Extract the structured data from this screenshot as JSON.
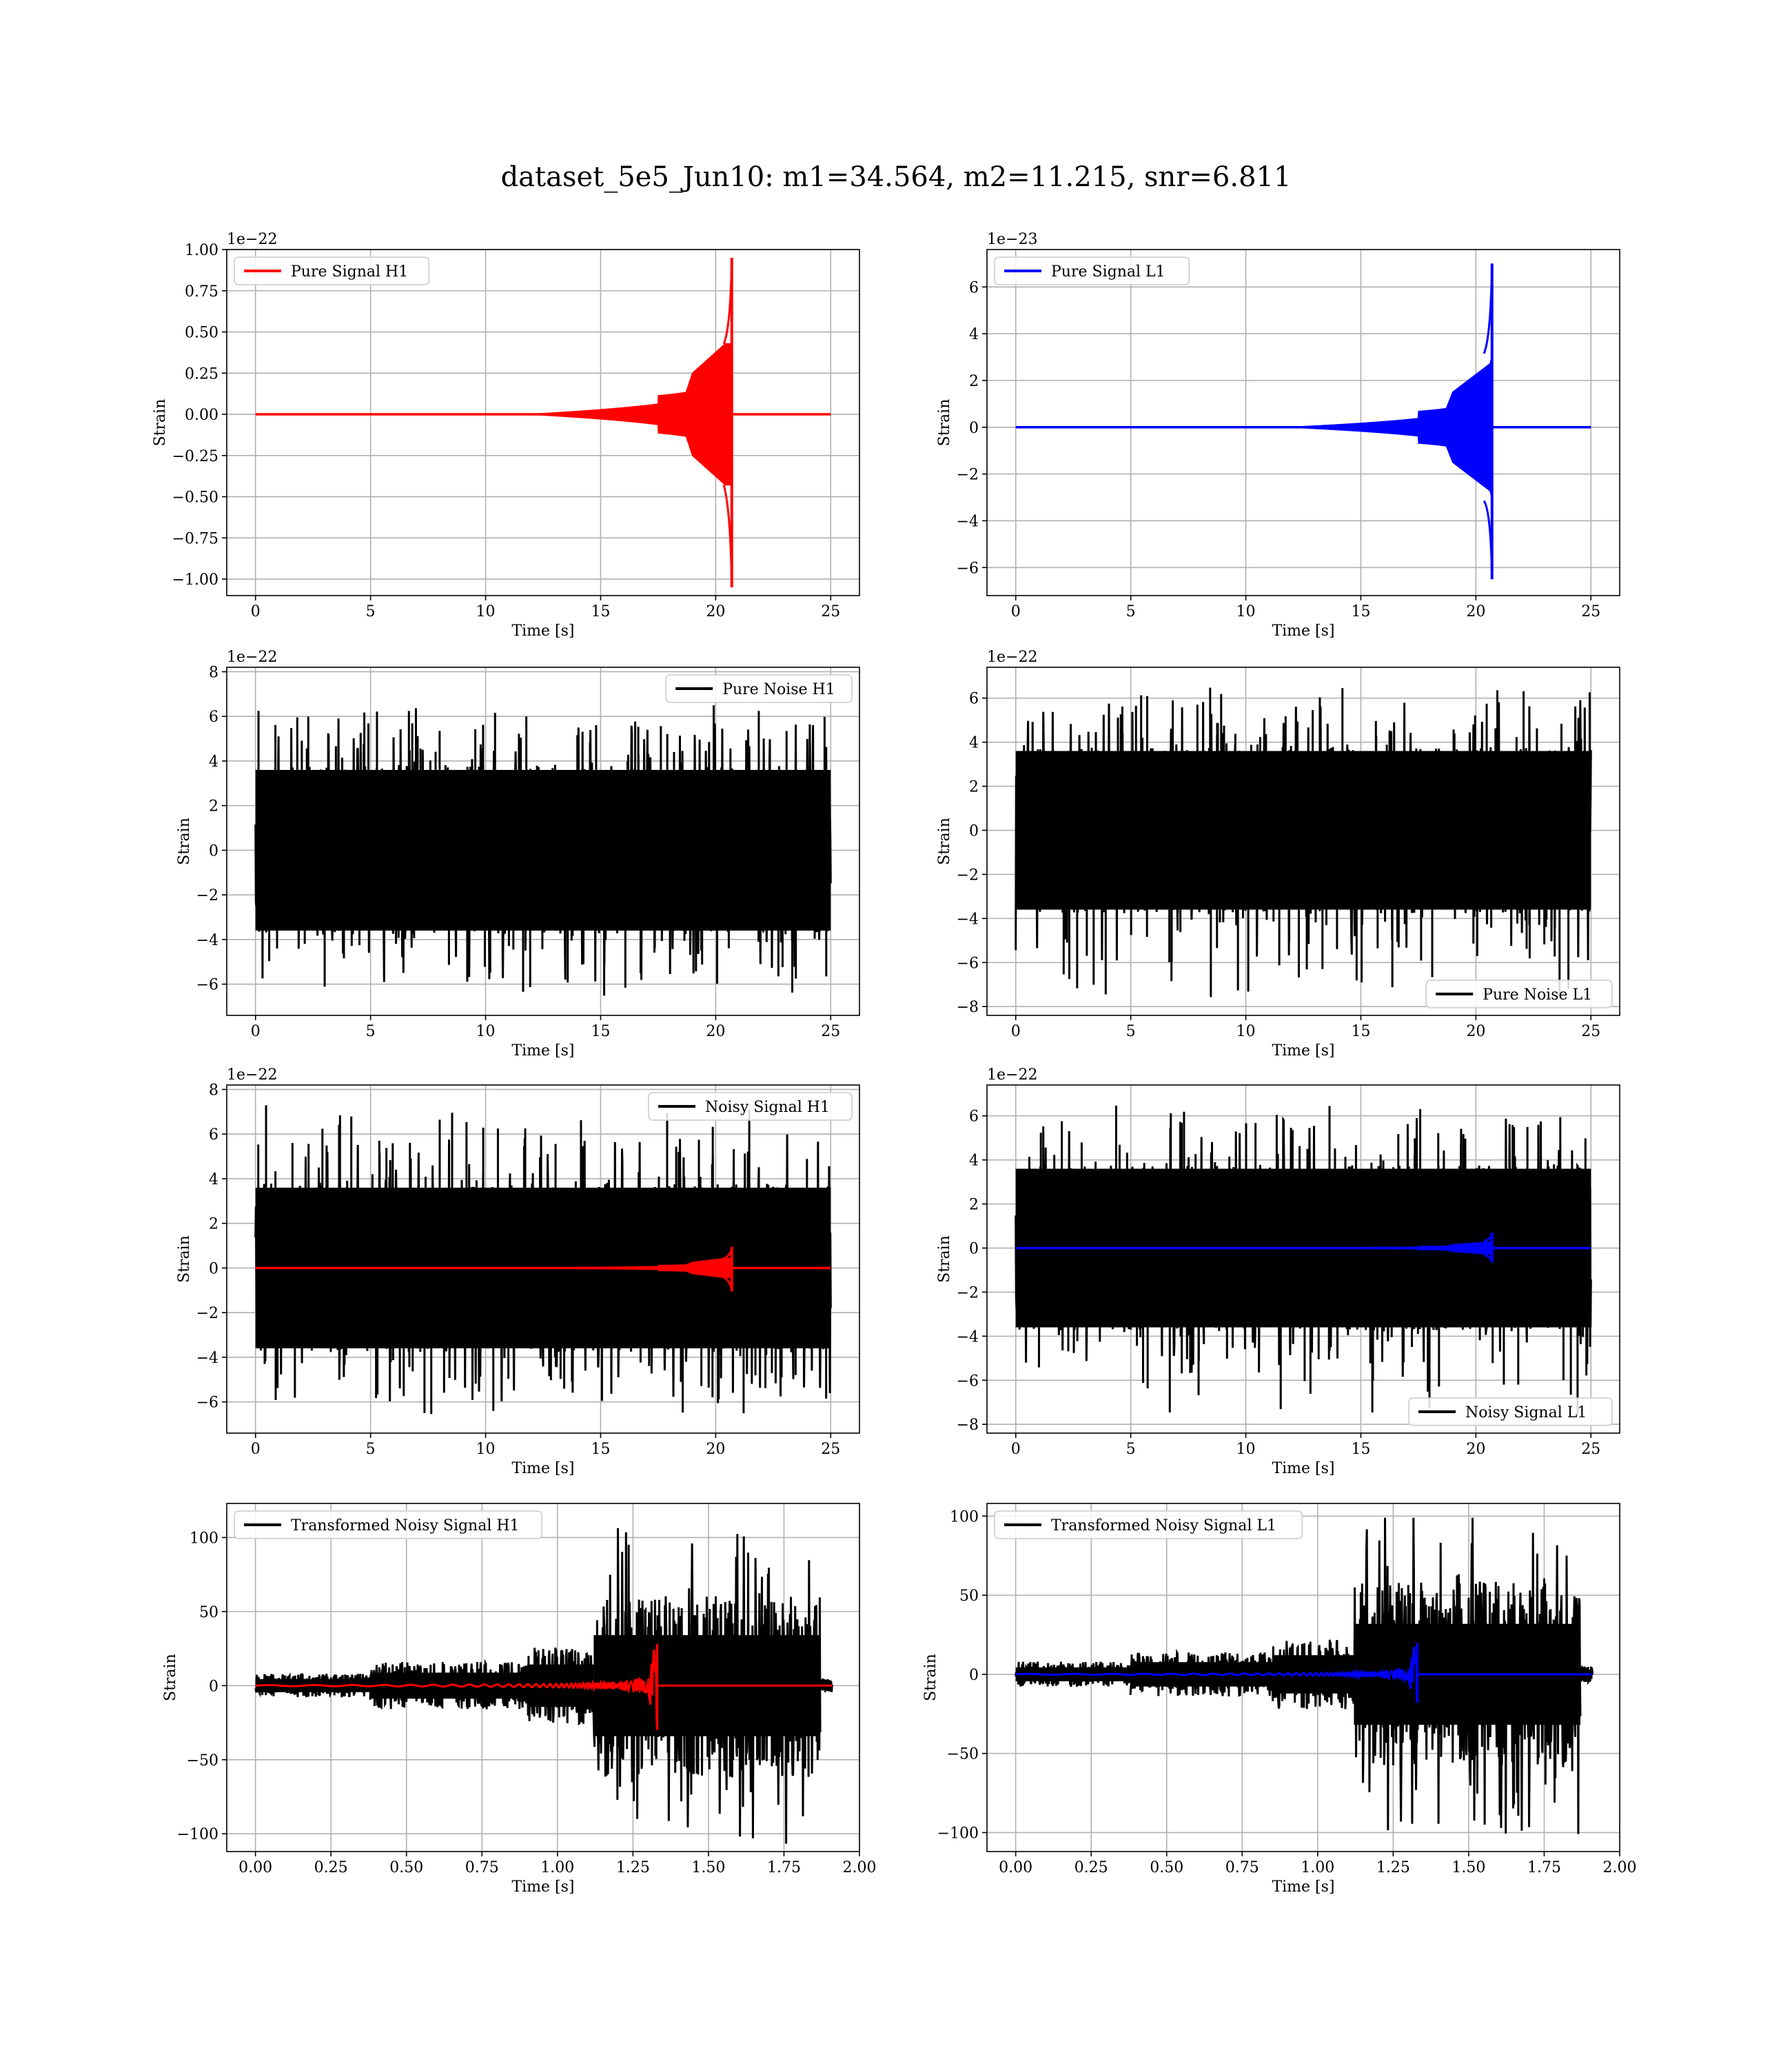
{
  "figure": {
    "suptitle": "dataset_5e5_Jun10: m1=34.564, m2=11.215, snr=6.811"
  },
  "chart_data": [
    {
      "type": "line",
      "legend": "Pure Signal H1",
      "legend_position": "upper left",
      "color": "#ff0000",
      "xlabel": "Time [s]",
      "ylabel": "Strain",
      "offset_text": "1e−22",
      "xlim": [
        -1.25,
        26.25
      ],
      "ylim": [
        -1.1,
        1.0
      ],
      "xticks": [
        0,
        5,
        10,
        15,
        20,
        25
      ],
      "xtick_labels": [
        "0",
        "5",
        "10",
        "15",
        "20",
        "25"
      ],
      "yticks": [
        1.0,
        0.75,
        0.5,
        0.25,
        0.0,
        -0.25,
        -0.5,
        -0.75,
        -1.0
      ],
      "ytick_labels": [
        "1.00",
        "0.75",
        "0.50",
        "0.25",
        "0.00",
        "−0.25",
        "−0.50",
        "−0.75",
        "−1.00"
      ],
      "grid": true,
      "waveform": {
        "t_start": 0,
        "t_merger": 20.7,
        "t_end": 25,
        "peak_pos": 0.95,
        "peak_neg": -1.05,
        "early_envelope": 0.25
      }
    },
    {
      "type": "line",
      "legend": "Pure Signal L1",
      "legend_position": "upper left",
      "color": "#0000ff",
      "xlabel": "Time [s]",
      "ylabel": "Strain",
      "offset_text": "1e−23",
      "xlim": [
        -1.25,
        26.25
      ],
      "ylim": [
        -7.2,
        7.6
      ],
      "xticks": [
        0,
        5,
        10,
        15,
        20,
        25
      ],
      "xtick_labels": [
        "0",
        "5",
        "10",
        "15",
        "20",
        "25"
      ],
      "yticks": [
        6,
        4,
        2,
        0,
        -2,
        -4,
        -6
      ],
      "ytick_labels": [
        "6",
        "4",
        "2",
        "0",
        "−2",
        "−4",
        "−6"
      ],
      "grid": true,
      "waveform": {
        "t_start": 0,
        "t_merger": 20.7,
        "t_end": 25,
        "peak_pos": 7.0,
        "peak_neg": -6.5,
        "early_envelope": 1.5
      }
    },
    {
      "type": "line",
      "legend": "Pure Noise H1",
      "legend_position": "upper right",
      "color": "#000000",
      "xlabel": "Time [s]",
      "ylabel": "Strain",
      "offset_text": "1e−22",
      "xlim": [
        -1.25,
        26.25
      ],
      "ylim": [
        -7.4,
        8.2
      ],
      "xticks": [
        0,
        5,
        10,
        15,
        20,
        25
      ],
      "xtick_labels": [
        "0",
        "5",
        "10",
        "15",
        "20",
        "25"
      ],
      "yticks": [
        8,
        6,
        4,
        2,
        0,
        -2,
        -4,
        -6
      ],
      "ytick_labels": [
        "8",
        "6",
        "4",
        "2",
        "0",
        "−2",
        "−4",
        "−6"
      ],
      "grid": true,
      "noise": {
        "t_start": 0,
        "t_end": 25,
        "band": 3.6,
        "max": 6.5,
        "min": -6.6
      }
    },
    {
      "type": "line",
      "legend": "Pure Noise L1",
      "legend_position": "lower right",
      "color": "#000000",
      "xlabel": "Time [s]",
      "ylabel": "Strain",
      "offset_text": "1e−22",
      "xlim": [
        -1.25,
        26.25
      ],
      "ylim": [
        -8.4,
        7.4
      ],
      "xticks": [
        0,
        5,
        10,
        15,
        20,
        25
      ],
      "xtick_labels": [
        "0",
        "5",
        "10",
        "15",
        "20",
        "25"
      ],
      "yticks": [
        6,
        4,
        2,
        0,
        -2,
        -4,
        -6,
        -8
      ],
      "ytick_labels": [
        "6",
        "4",
        "2",
        "0",
        "−2",
        "−4",
        "−6",
        "−8"
      ],
      "grid": true,
      "noise": {
        "t_start": 0,
        "t_end": 25,
        "band": 3.6,
        "max": 6.5,
        "min": -7.6
      }
    },
    {
      "type": "line",
      "legend": "Noisy Signal H1",
      "legend_position": "upper right",
      "color": "#000000",
      "overlay_color": "#ff0000",
      "xlabel": "Time [s]",
      "ylabel": "Strain",
      "offset_text": "1e−22",
      "xlim": [
        -1.25,
        26.25
      ],
      "ylim": [
        -7.4,
        8.2
      ],
      "xticks": [
        0,
        5,
        10,
        15,
        20,
        25
      ],
      "xtick_labels": [
        "0",
        "5",
        "10",
        "15",
        "20",
        "25"
      ],
      "yticks": [
        8,
        6,
        4,
        2,
        0,
        -2,
        -4,
        -6
      ],
      "ytick_labels": [
        "8",
        "6",
        "4",
        "2",
        "0",
        "−2",
        "−4",
        "−6"
      ],
      "grid": true,
      "noise": {
        "t_start": 0,
        "t_end": 25,
        "band": 3.6,
        "max": 7.3,
        "min": -6.6
      },
      "waveform": {
        "t_start": 0,
        "t_merger": 20.7,
        "t_end": 25,
        "peak_pos": 0.95,
        "peak_neg": -1.05,
        "early_envelope": 0.25
      }
    },
    {
      "type": "line",
      "legend": "Noisy Signal L1",
      "legend_position": "lower right",
      "color": "#000000",
      "overlay_color": "#0000ff",
      "xlabel": "Time [s]",
      "ylabel": "Strain",
      "offset_text": "1e−22",
      "xlim": [
        -1.25,
        26.25
      ],
      "ylim": [
        -8.4,
        7.4
      ],
      "xticks": [
        0,
        5,
        10,
        15,
        20,
        25
      ],
      "xtick_labels": [
        "0",
        "5",
        "10",
        "15",
        "20",
        "25"
      ],
      "yticks": [
        6,
        4,
        2,
        0,
        -2,
        -4,
        -6,
        -8
      ],
      "ytick_labels": [
        "6",
        "4",
        "2",
        "0",
        "−2",
        "−4",
        "−6",
        "−8"
      ],
      "grid": true,
      "noise": {
        "t_start": 0,
        "t_end": 25,
        "band": 3.6,
        "max": 6.5,
        "min": -7.6
      },
      "waveform": {
        "t_start": 0,
        "t_merger": 20.7,
        "t_end": 25,
        "peak_pos": 0.7,
        "peak_neg": -0.65,
        "early_envelope": 0.15
      }
    },
    {
      "type": "line",
      "legend": "Transformed Noisy Signal H1",
      "legend_position": "upper left",
      "color": "#000000",
      "overlay_color": "#ff0000",
      "xlabel": "Time [s]",
      "ylabel": "Strain",
      "offset_text": "",
      "xlim": [
        -0.095,
        2.0
      ],
      "ylim": [
        -112,
        123
      ],
      "xticks": [
        0.0,
        0.25,
        0.5,
        0.75,
        1.0,
        1.25,
        1.5,
        1.75,
        2.0
      ],
      "xtick_labels": [
        "0.00",
        "0.25",
        "0.50",
        "0.75",
        "1.00",
        "1.25",
        "1.50",
        "1.75",
        "2.00"
      ],
      "yticks": [
        100,
        50,
        0,
        -50,
        -100
      ],
      "ytick_labels": [
        "100",
        "50",
        "0",
        "−50",
        "−100"
      ],
      "grid": true,
      "transformed": {
        "t_end": 1.91,
        "segments": [
          {
            "t0": 0.0,
            "t1": 0.38,
            "amp": 8
          },
          {
            "t0": 0.38,
            "t1": 0.9,
            "amp": 16
          },
          {
            "t0": 0.9,
            "t1": 1.12,
            "amp": 26
          },
          {
            "t0": 1.12,
            "t1": 1.87,
            "amp": 62
          },
          {
            "t0": 1.87,
            "t1": 1.91,
            "amp": 5
          }
        ],
        "max": 113,
        "min": -110,
        "overlay": {
          "t_start": 0.0,
          "t_merger": 1.33,
          "t_end": 1.91,
          "peak_pos": 28,
          "peak_neg": -30
        }
      }
    },
    {
      "type": "line",
      "legend": "Transformed Noisy Signal L1",
      "legend_position": "upper left",
      "color": "#000000",
      "overlay_color": "#0000ff",
      "xlabel": "Time [s]",
      "ylabel": "Strain",
      "offset_text": "",
      "xlim": [
        -0.095,
        2.0
      ],
      "ylim": [
        -112,
        108
      ],
      "xticks": [
        0.0,
        0.25,
        0.5,
        0.75,
        1.0,
        1.25,
        1.5,
        1.75,
        2.0
      ],
      "xtick_labels": [
        "0.00",
        "0.25",
        "0.50",
        "0.75",
        "1.00",
        "1.25",
        "1.50",
        "1.75",
        "2.00"
      ],
      "yticks": [
        100,
        50,
        0,
        -50,
        -100
      ],
      "ytick_labels": [
        "100",
        "50",
        "0",
        "−50",
        "−100"
      ],
      "grid": true,
      "transformed": {
        "t_end": 1.91,
        "segments": [
          {
            "t0": 0.0,
            "t1": 0.38,
            "amp": 8
          },
          {
            "t0": 0.38,
            "t1": 0.85,
            "amp": 14
          },
          {
            "t0": 0.85,
            "t1": 1.12,
            "amp": 22
          },
          {
            "t0": 1.12,
            "t1": 1.87,
            "amp": 58
          },
          {
            "t0": 1.87,
            "t1": 1.91,
            "amp": 5
          }
        ],
        "max": 99,
        "min": -104,
        "overlay": {
          "t_start": 0.0,
          "t_merger": 1.33,
          "t_end": 1.91,
          "peak_pos": 20,
          "peak_neg": -18
        }
      }
    }
  ]
}
